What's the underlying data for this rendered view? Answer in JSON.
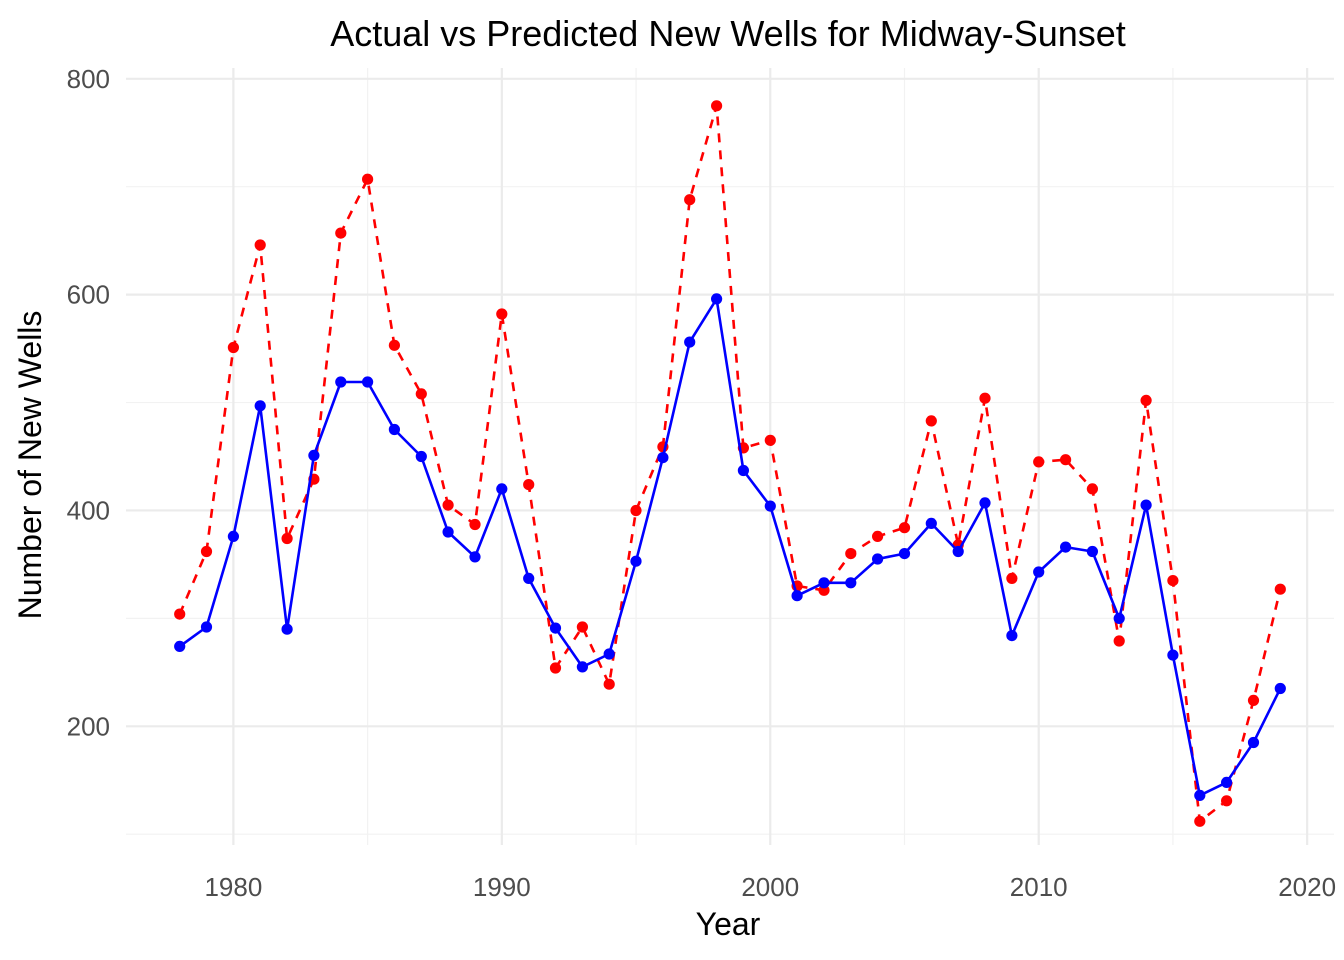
{
  "chart_data": {
    "type": "line",
    "title": "Actual vs Predicted New Wells for Midway-Sunset",
    "xlabel": "Year",
    "ylabel": "Number of New Wells",
    "xlim": [
      1976,
      2021
    ],
    "ylim": [
      90,
      810
    ],
    "x_ticks": [
      1980,
      1990,
      2000,
      2010,
      2020
    ],
    "x_tick_labels": [
      "1980",
      "1990",
      "2000",
      "2010",
      "2020"
    ],
    "y_ticks": [
      200,
      400,
      600,
      800
    ],
    "y_tick_labels": [
      "200",
      "400",
      "600",
      "800"
    ],
    "grid": true,
    "legend": "none",
    "x": [
      1978,
      1979,
      1980,
      1981,
      1982,
      1983,
      1984,
      1985,
      1986,
      1987,
      1988,
      1989,
      1990,
      1991,
      1992,
      1993,
      1994,
      1995,
      1996,
      1997,
      1998,
      1999,
      2000,
      2001,
      2002,
      2003,
      2004,
      2005,
      2006,
      2007,
      2008,
      2009,
      2010,
      2011,
      2012,
      2013,
      2014,
      2015,
      2016,
      2017,
      2018,
      2019
    ],
    "series": [
      {
        "color": "#0000ff",
        "line_style": "solid",
        "values": [
          274,
          292,
          376,
          497,
          290,
          451,
          519,
          519,
          475,
          450,
          380,
          357,
          420,
          337,
          291,
          255,
          267,
          353,
          449,
          556,
          596,
          437,
          404,
          321,
          333,
          333,
          355,
          360,
          388,
          362,
          407,
          284,
          343,
          366,
          362,
          300,
          405,
          266,
          136,
          148,
          185,
          235
        ]
      },
      {
        "color": "#ff0000",
        "line_style": "dashed",
        "values": [
          304,
          362,
          551,
          646,
          374,
          429,
          657,
          707,
          553,
          508,
          405,
          387,
          582,
          424,
          254,
          292,
          239,
          400,
          459,
          688,
          775,
          458,
          465,
          330,
          326,
          360,
          376,
          384,
          483,
          368,
          504,
          337,
          445,
          447,
          420,
          279,
          502,
          335,
          112,
          131,
          224,
          327
        ]
      }
    ]
  }
}
